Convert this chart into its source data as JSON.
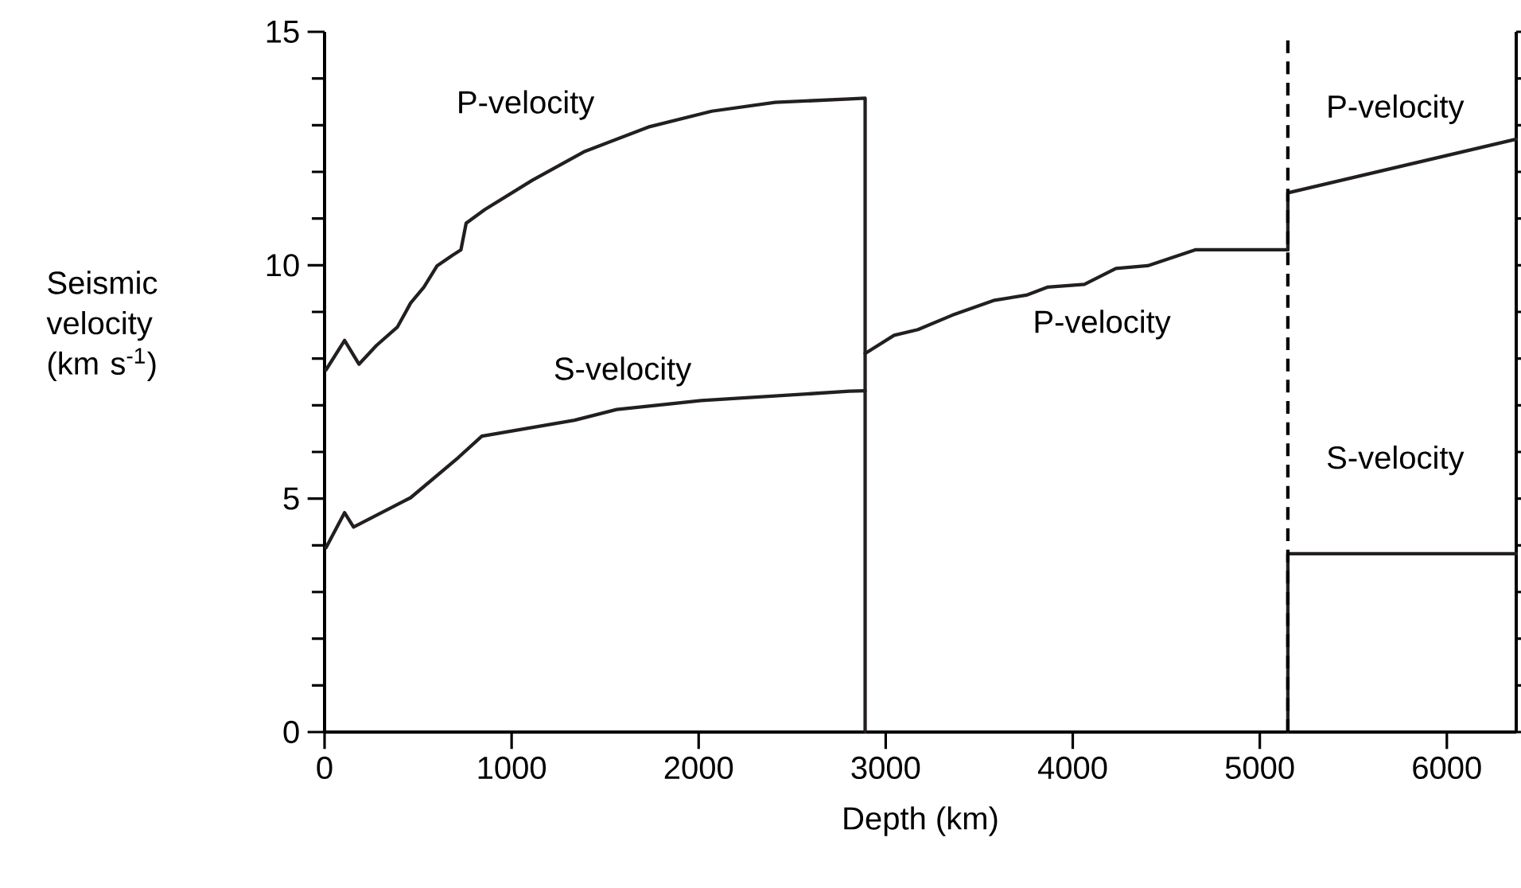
{
  "chart_data": {
    "type": "line",
    "xlabel": "Depth (km)",
    "ylabel": "Seismic velocity (km s$^{-1}$)",
    "xlim": [
      0,
      6371
    ],
    "ylim": [
      0,
      15
    ],
    "xticks": [
      0,
      1000,
      2000,
      3000,
      4000,
      5000,
      6000
    ],
    "yticks": [
      0,
      5,
      10,
      15
    ],
    "grid": false,
    "marker": "none",
    "line_style": "solid",
    "series": [
      {
        "name": "P-velocity",
        "color": "#231f20",
        "x": [
          8,
          107,
          184,
          277,
          390,
          460,
          531,
          602,
          686,
          729,
          757,
          856,
          1110,
          1392,
          1731,
          2070,
          2409,
          2805,
          2890,
          2890
        ],
        "values": [
          7.76,
          8.39,
          7.88,
          8.28,
          8.68,
          9.19,
          9.53,
          9.99,
          10.22,
          10.33,
          10.9,
          11.19,
          11.82,
          12.44,
          12.96,
          13.3,
          13.49,
          13.56,
          13.58,
          0
        ]
      },
      {
        "name": "S-velocity",
        "color": "#231f20",
        "x": [
          8,
          107,
          155,
          460,
          715,
          841,
          1336,
          1562,
          2014,
          2805,
          2890
        ],
        "values": [
          3.95,
          4.7,
          4.39,
          5.02,
          5.88,
          6.34,
          6.68,
          6.91,
          7.1,
          7.3,
          7.31
        ]
      },
      {
        "name": "P-velocity",
        "color": "#231f20",
        "x": [
          2890,
          3045,
          3172,
          3356,
          3582,
          3752,
          3864,
          4062,
          4231,
          4401,
          4655,
          5150
        ],
        "values": [
          8.11,
          8.5,
          8.62,
          8.93,
          9.25,
          9.36,
          9.53,
          9.59,
          9.93,
          9.99,
          10.33,
          10.33
        ]
      },
      {
        "name": "P-velocity",
        "color": "#231f20",
        "x": [
          5150,
          5150,
          6371
        ],
        "values": [
          10.33,
          11.55,
          12.7
        ]
      },
      {
        "name": "S-velocity",
        "color": "#231f20",
        "x": [
          5150,
          5150,
          6371
        ],
        "values": [
          0,
          3.82,
          3.82
        ]
      }
    ],
    "ref_lines": [
      {
        "axis": "x",
        "value": 5150,
        "line_style": "dashed"
      }
    ]
  }
}
